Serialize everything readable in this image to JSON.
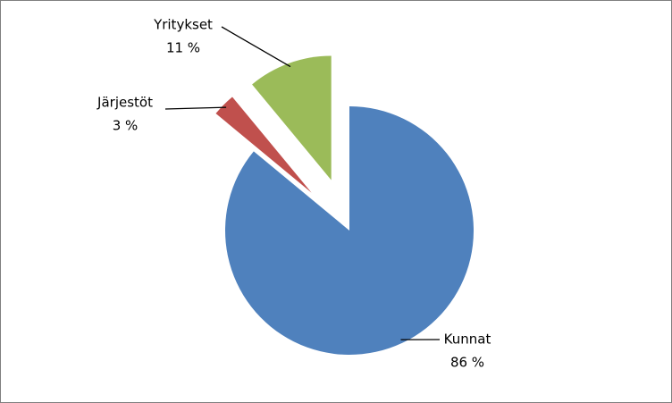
{
  "chart_data": {
    "type": "pie",
    "categories": [
      "Kunnat",
      "Järjestöt",
      "Yritykset"
    ],
    "values": [
      86,
      3,
      11
    ],
    "value_labels": [
      "86 %",
      "3 %",
      "11 %"
    ],
    "colors": [
      "#4f81bd",
      "#c0504d",
      "#9bbb59"
    ]
  }
}
